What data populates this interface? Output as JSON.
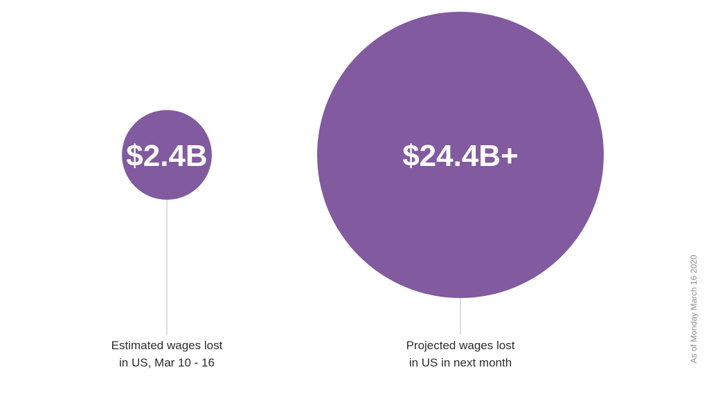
{
  "chart_data": {
    "type": "bubble",
    "title": "",
    "xlabel": "",
    "ylabel": "",
    "series": [
      {
        "name": "Estimated wages lost in US, Mar 10 - 16",
        "value": 2.4,
        "unit": "billion USD",
        "value_label": "$2.4B",
        "caption_lines": [
          "Estimated wages lost",
          "in US, Mar 10 - 16"
        ]
      },
      {
        "name": "Projected wages lost in US in next month",
        "value": 24.4,
        "unit": "billion USD",
        "value_label": "$24.4B+",
        "caption_lines": [
          "Projected wages lost",
          "in US in next month"
        ]
      }
    ],
    "note": "As of Monday March 16 2020",
    "colors": {
      "bubble": "#825aa0",
      "value_text_outside": "#825aa0",
      "value_text_inside": "#ffffff",
      "leader_line": "#c8c8c8"
    }
  }
}
